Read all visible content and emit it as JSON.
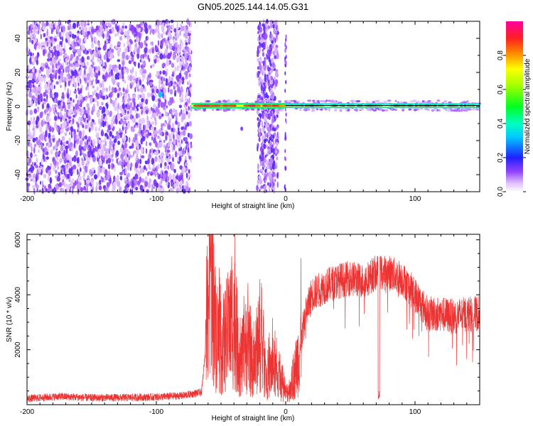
{
  "title": "GN05.2025.144.14.05.G31",
  "chart_data": [
    {
      "type": "heatmap",
      "xlabel": "Height of straight line (km)",
      "ylabel": "Frequency (Hz)",
      "xlim": [
        -200,
        150
      ],
      "ylim": [
        -50,
        50
      ],
      "x_ticks": [
        -200,
        -100,
        0,
        100
      ],
      "y_ticks": [
        -40,
        -20,
        0,
        20,
        40
      ],
      "colorbar": {
        "label": "Normalized spectral amplitude",
        "range": [
          0,
          1
        ],
        "ticks": [
          0.0,
          0.2,
          0.4,
          0.6,
          0.8
        ],
        "tick_labels": [
          "0.0",
          "0.2",
          "0.4",
          "0.6",
          "0.8"
        ]
      },
      "features": {
        "noise_region_x": [
          -200,
          -73
        ],
        "noise_band_x": [
          -22,
          -6
        ],
        "line_region_x": [
          -73,
          150
        ],
        "line_frequency_hz": 0.5,
        "grid": false
      }
    },
    {
      "type": "line",
      "xlabel": "Height of straight line (km)",
      "ylabel": "SNR (10 * v/v)",
      "xlim": [
        -200,
        150
      ],
      "ylim": [
        0,
        6200
      ],
      "x_ticks": [
        -200,
        -100,
        0,
        100
      ],
      "y_ticks": [
        2000,
        4000,
        6000
      ],
      "color": "#ee3333",
      "series_profile": [
        {
          "x": -200,
          "y": 220
        },
        {
          "x": -175,
          "y": 300
        },
        {
          "x": -150,
          "y": 250
        },
        {
          "x": -125,
          "y": 260
        },
        {
          "x": -100,
          "y": 280
        },
        {
          "x": -80,
          "y": 330
        },
        {
          "x": -65,
          "y": 450
        },
        {
          "x": -61,
          "y": 2500
        },
        {
          "x": -58,
          "y": 6200
        },
        {
          "x": -55,
          "y": 3000
        },
        {
          "x": -50,
          "y": 2000
        },
        {
          "x": -45,
          "y": 2600
        },
        {
          "x": -40,
          "y": 3200
        },
        {
          "x": -35,
          "y": 1500
        },
        {
          "x": -30,
          "y": 2200
        },
        {
          "x": -25,
          "y": 1300
        },
        {
          "x": -20,
          "y": 2600
        },
        {
          "x": -15,
          "y": 1000
        },
        {
          "x": -10,
          "y": 1400
        },
        {
          "x": -5,
          "y": 900
        },
        {
          "x": 0,
          "y": 400
        },
        {
          "x": 5,
          "y": 700
        },
        {
          "x": 10,
          "y": 1800
        },
        {
          "x": 15,
          "y": 3200
        },
        {
          "x": 20,
          "y": 4000
        },
        {
          "x": 30,
          "y": 4300
        },
        {
          "x": 40,
          "y": 4500
        },
        {
          "x": 50,
          "y": 4600
        },
        {
          "x": 60,
          "y": 4500
        },
        {
          "x": 70,
          "y": 4800
        },
        {
          "x": 80,
          "y": 4800
        },
        {
          "x": 90,
          "y": 4600
        },
        {
          "x": 100,
          "y": 4000
        },
        {
          "x": 110,
          "y": 3300
        },
        {
          "x": 120,
          "y": 3300
        },
        {
          "x": 130,
          "y": 3200
        },
        {
          "x": 140,
          "y": 3300
        },
        {
          "x": 150,
          "y": 3300
        }
      ],
      "grid": false
    }
  ]
}
